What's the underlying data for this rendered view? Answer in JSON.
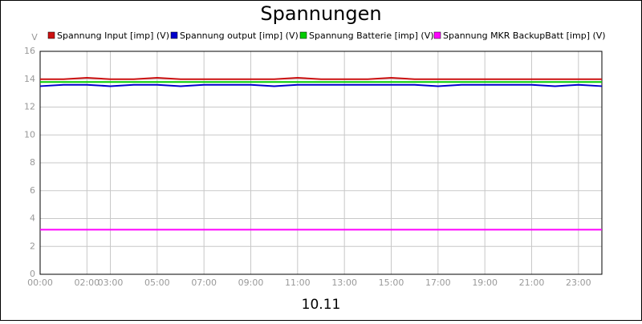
{
  "chart_data": {
    "type": "line",
    "title": "Spannungen",
    "x_label": "10.11",
    "y_label": "V",
    "x": [
      0,
      1,
      2,
      3,
      4,
      5,
      6,
      7,
      8,
      9,
      10,
      11,
      12,
      13,
      14,
      15,
      16,
      17,
      18,
      19,
      20,
      21,
      22,
      23,
      24
    ],
    "series": [
      {
        "name": "Spannung Input [imp] (V)",
        "color": "#cc1111",
        "values": [
          14.0,
          14.0,
          14.1,
          14.0,
          14.0,
          14.1,
          14.0,
          14.0,
          14.0,
          14.0,
          14.0,
          14.1,
          14.0,
          14.0,
          14.0,
          14.1,
          14.0,
          14.0,
          14.0,
          14.0,
          14.0,
          14.0,
          14.0,
          14.0,
          14.0
        ]
      },
      {
        "name": "Spannung output [imp] (V)",
        "color": "#0000cc",
        "values": [
          13.5,
          13.6,
          13.6,
          13.5,
          13.6,
          13.6,
          13.5,
          13.6,
          13.6,
          13.6,
          13.5,
          13.6,
          13.6,
          13.6,
          13.6,
          13.6,
          13.6,
          13.5,
          13.6,
          13.6,
          13.6,
          13.6,
          13.5,
          13.6,
          13.5
        ]
      },
      {
        "name": "Spannung Batterie [imp] (V)",
        "color": "#00cc00",
        "values": [
          13.8,
          13.8,
          13.8,
          13.8,
          13.8,
          13.8,
          13.8,
          13.8,
          13.8,
          13.8,
          13.8,
          13.8,
          13.8,
          13.8,
          13.8,
          13.8,
          13.8,
          13.8,
          13.8,
          13.8,
          13.8,
          13.8,
          13.8,
          13.8,
          13.8
        ]
      },
      {
        "name": "Spannung MKR BackupBatt [imp] (V)",
        "color": "#ff00ff",
        "values": [
          3.2,
          3.2,
          3.2,
          3.2,
          3.2,
          3.2,
          3.2,
          3.2,
          3.2,
          3.2,
          3.2,
          3.2,
          3.2,
          3.2,
          3.2,
          3.2,
          3.2,
          3.2,
          3.2,
          3.2,
          3.2,
          3.2,
          3.2,
          3.2,
          3.2
        ]
      }
    ],
    "xlim": [
      0,
      24
    ],
    "xticks": [
      {
        "value": 0,
        "label": "00:00"
      },
      {
        "value": 2,
        "label": "02:00"
      },
      {
        "value": 3,
        "label": "03:00"
      },
      {
        "value": 5,
        "label": "05:00"
      },
      {
        "value": 7,
        "label": "07:00"
      },
      {
        "value": 9,
        "label": "09:00"
      },
      {
        "value": 11,
        "label": "11:00"
      },
      {
        "value": 13,
        "label": "13:00"
      },
      {
        "value": 15,
        "label": "15:00"
      },
      {
        "value": 17,
        "label": "17:00"
      },
      {
        "value": 19,
        "label": "19:00"
      },
      {
        "value": 21,
        "label": "21:00"
      },
      {
        "value": 23,
        "label": "23:00"
      }
    ],
    "ylim": [
      0,
      16
    ],
    "yticks": [
      0,
      2,
      4,
      6,
      8,
      10,
      12,
      14,
      16
    ],
    "grid": true
  }
}
